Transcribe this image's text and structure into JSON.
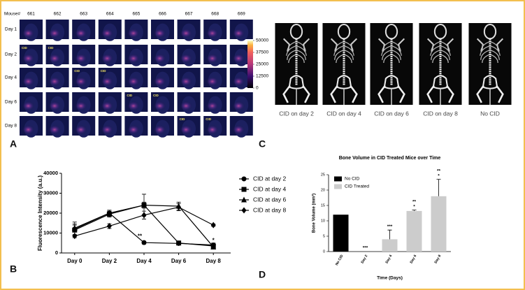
{
  "panel_letters": [
    "A",
    "B",
    "C",
    "D"
  ],
  "imaging": {
    "header": "Mouse#",
    "mice": [
      "661",
      "662",
      "663",
      "664",
      "665",
      "666",
      "667",
      "668",
      "669"
    ],
    "days": [
      "Day 1",
      "Day 2",
      "Day 4",
      "Day 6",
      "Day 8"
    ],
    "marker": "CID",
    "colorbar": {
      "lim": [
        0,
        50000
      ],
      "ticks": [
        0,
        12500,
        25000,
        37500,
        50000
      ]
    }
  },
  "xray": {
    "labels": [
      "CID on day 2",
      "CID on day 4",
      "CID on day 6",
      "CID on day 8",
      "No CID"
    ]
  },
  "chart_data": [
    {
      "type": "line",
      "y_label": "Fluorescence Intensity (a.u.)",
      "categories": [
        "Day 0",
        "Day 2",
        "Day 4",
        "Day 6",
        "Day 8"
      ],
      "ylim": [
        0,
        40000
      ],
      "yticks": [
        0,
        10000,
        20000,
        30000,
        40000
      ],
      "legend": "right",
      "series": [
        {
          "name": "CID at day 2",
          "marker": "circle",
          "color": "#000000",
          "values": [
            12000,
            20000,
            5200,
            4800,
            4000
          ],
          "errors": [
            3500,
            1500,
            700,
            800,
            1000
          ]
        },
        {
          "name": "CID at day 4",
          "marker": "square",
          "color": "#000000",
          "values": [
            11500,
            19500,
            24000,
            5000,
            3500
          ],
          "errors": [
            2500,
            1500,
            5500,
            1000,
            800
          ]
        },
        {
          "name": "CID at day 6",
          "marker": "triangle",
          "color": "#000000",
          "values": [
            12500,
            20000,
            24000,
            23500,
            3000
          ],
          "errors": [
            2000,
            1000,
            1500,
            2000,
            700
          ]
        },
        {
          "name": "CID at day 8",
          "marker": "diamond",
          "color": "#000000",
          "values": [
            8500,
            13500,
            19000,
            23000,
            14000
          ],
          "errors": [
            800,
            1200,
            2000,
            1800,
            600
          ]
        }
      ],
      "annotations": [
        {
          "text": "**",
          "category": 2
        },
        {
          "text": "*",
          "category": 4
        }
      ]
    },
    {
      "type": "bar",
      "title": "Bone Volume in CID Treated Mice over Time",
      "x_label": "Time (Days)",
      "y_label": "Bone Volume (mm³)",
      "categories": [
        "No CID",
        "Day 2",
        "Day 4",
        "Day 6",
        "Day 8"
      ],
      "ylim": [
        0,
        25
      ],
      "yticks": [
        0,
        5,
        10,
        15,
        20,
        25
      ],
      "legend": "upper left",
      "series": [
        {
          "name": "No CID",
          "color": "#000000",
          "values": [
            12,
            null,
            null,
            null,
            null
          ],
          "errors": [
            null,
            null,
            null,
            null,
            null
          ]
        },
        {
          "name": "CID Treated",
          "color": "#cccccc",
          "values": [
            null,
            0,
            4,
            13.2,
            18
          ],
          "errors": [
            null,
            null,
            3,
            0.3,
            5.5
          ]
        }
      ],
      "significance": [
        null,
        [
          "***"
        ],
        [
          "***"
        ],
        [
          "**",
          "*"
        ],
        [
          "**",
          "*"
        ]
      ]
    }
  ]
}
